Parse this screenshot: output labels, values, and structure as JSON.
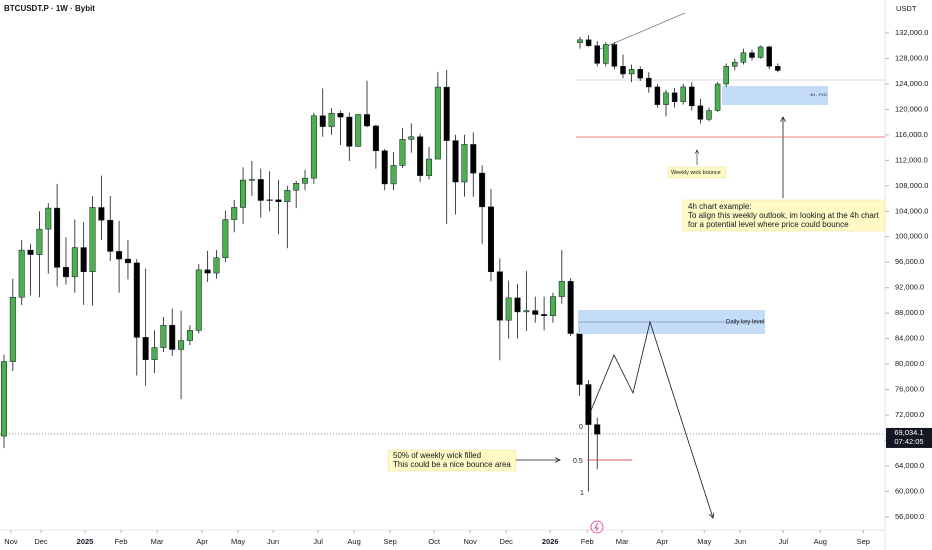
{
  "chart_data": {
    "type": "candlestick",
    "title": "BTCUSDT.P · 1W · Bybit",
    "y_axis_label": "USDT",
    "up_color": "#4caf50",
    "down_color": "#000000",
    "grid": false,
    "categories": [
      null,
      null,
      null,
      null,
      null,
      null,
      null,
      null,
      null,
      null,
      null,
      null,
      null,
      null,
      null,
      null,
      null,
      null,
      null,
      null,
      null,
      null,
      null,
      null,
      null,
      null,
      null,
      null,
      null,
      null,
      null,
      null,
      null,
      null,
      null,
      null,
      null,
      null,
      null,
      null,
      null,
      null,
      null,
      null,
      null,
      null,
      null,
      null,
      null,
      null,
      null,
      null,
      null,
      null,
      null,
      null,
      null,
      null,
      null,
      null,
      null,
      null,
      null,
      null,
      null,
      null,
      null,
      null
    ],
    "open": [
      68700,
      80400,
      90500,
      97900,
      97200,
      101200,
      104500,
      95200,
      93700,
      98300,
      94500,
      104600,
      102600,
      97700,
      96500,
      95900,
      84200,
      80700,
      82600,
      86100,
      82300,
      83700,
      85300,
      94800,
      94300,
      96700,
      102700,
      104600,
      108900,
      109000,
      105700,
      105800,
      105500,
      107300,
      108400,
      109200,
      119000,
      117300,
      119400,
      118800,
      114200,
      119200,
      117400,
      113500,
      108300,
      111200,
      115300,
      115700,
      109600,
      112200,
      123500,
      115100,
      108600,
      114500,
      110000,
      104700,
      94500,
      86900,
      90400,
      88200,
      88400,
      87800,
      87600,
      90600,
      93000,
      84800,
      76800,
      70500
    ],
    "high": [
      81500,
      93400,
      99500,
      98900,
      104000,
      105300,
      108300,
      99900,
      102700,
      102300,
      106400,
      109600,
      106400,
      102500,
      99500,
      96500,
      95000,
      85300,
      87400,
      88700,
      88400,
      86100,
      95700,
      97800,
      97900,
      104100,
      105800,
      110900,
      111900,
      110700,
      110300,
      108900,
      108000,
      108800,
      110500,
      119500,
      123300,
      120200,
      119800,
      119500,
      119300,
      124500,
      117600,
      113800,
      113300,
      117100,
      117800,
      116200,
      114100,
      125900,
      126200,
      116000,
      116000,
      116400,
      111200,
      107500,
      96600,
      93100,
      92600,
      94600,
      90600,
      90600,
      91200,
      97900,
      93500,
      86000,
      77500,
      71600
    ],
    "low": [
      66800,
      78900,
      89300,
      90800,
      90500,
      94200,
      92200,
      92500,
      91200,
      89300,
      89200,
      99500,
      96200,
      91200,
      93300,
      78200,
      76600,
      78600,
      81900,
      81300,
      74500,
      83000,
      84800,
      92900,
      93400,
      96000,
      100700,
      102000,
      106400,
      103000,
      104000,
      100400,
      98200,
      104500,
      107300,
      108300,
      115700,
      116000,
      114400,
      111900,
      114100,
      117200,
      110700,
      107300,
      107300,
      110800,
      113200,
      108600,
      109000,
      112200,
      102000,
      103500,
      106300,
      106300,
      98900,
      93000,
      80600,
      84000,
      84000,
      85200,
      86500,
      85300,
      86500,
      89500,
      84400,
      75000,
      60000,
      63500
    ],
    "close": [
      80400,
      90500,
      97900,
      97200,
      101200,
      104500,
      95200,
      93700,
      98300,
      94500,
      104600,
      102600,
      97700,
      96500,
      95900,
      84200,
      80700,
      82600,
      86100,
      82300,
      83700,
      85300,
      94800,
      94300,
      96700,
      102700,
      104600,
      108900,
      109000,
      105700,
      105800,
      105500,
      107300,
      108400,
      109200,
      119000,
      117300,
      119400,
      118800,
      114200,
      119200,
      117400,
      113500,
      108300,
      111200,
      115300,
      115700,
      109600,
      112200,
      123500,
      115100,
      108600,
      114500,
      110000,
      104700,
      94500,
      86900,
      90400,
      88200,
      88400,
      87800,
      87600,
      90600,
      93000,
      84800,
      76800,
      70500,
      69000
    ],
    "xlim": [
      -0.45,
      99.5
    ],
    "xticks": [
      {
        "value": 0.79,
        "label": "Nov"
      },
      {
        "value": 4.18,
        "label": "Dec"
      },
      {
        "value": 9.15,
        "label": "2025"
      },
      {
        "value": 13.22,
        "label": "Feb"
      },
      {
        "value": 17.29,
        "label": "Mar"
      },
      {
        "value": 22.37,
        "label": "Apr"
      },
      {
        "value": 26.44,
        "label": "May"
      },
      {
        "value": 30.39,
        "label": "Jun"
      },
      {
        "value": 35.48,
        "label": "Jul"
      },
      {
        "value": 39.54,
        "label": "Aug"
      },
      {
        "value": 43.61,
        "label": "Sep"
      },
      {
        "value": 48.58,
        "label": "Oct"
      },
      {
        "value": 52.65,
        "label": "Nov"
      },
      {
        "value": 56.72,
        "label": "Dec"
      },
      {
        "value": 61.69,
        "label": "2026"
      },
      {
        "value": 65.87,
        "label": "Feb"
      },
      {
        "value": 69.82,
        "label": "Mar"
      },
      {
        "value": 74.34,
        "label": "Apr"
      },
      {
        "value": 79.09,
        "label": "May"
      },
      {
        "value": 83.15,
        "label": "Jun"
      },
      {
        "value": 88.01,
        "label": "Jul"
      },
      {
        "value": 92.19,
        "label": "Aug"
      },
      {
        "value": 97.05,
        "label": "Sep"
      }
    ],
    "ylim": [
      53950,
      137180
    ],
    "yticks": [
      {
        "value": 132000,
        "label": "132,000.0"
      },
      {
        "value": 128000,
        "label": "128,000.0"
      },
      {
        "value": 124000,
        "label": "124,000.0"
      },
      {
        "value": 120000,
        "label": "120,000.0"
      },
      {
        "value": 116000,
        "label": "116,000.0"
      },
      {
        "value": 112000,
        "label": "112,000.0"
      },
      {
        "value": 108000,
        "label": "108,000.0"
      },
      {
        "value": 104000,
        "label": "104,000.0"
      },
      {
        "value": 100000,
        "label": "100,000.0"
      },
      {
        "value": 96000,
        "label": "96,000.0"
      },
      {
        "value": 92000,
        "label": "92,000.0"
      },
      {
        "value": 88000,
        "label": "88,000.0"
      },
      {
        "value": 84000,
        "label": "84,000.0"
      },
      {
        "value": 80000,
        "label": "80,000.0"
      },
      {
        "value": 76000,
        "label": "76,000.0"
      },
      {
        "value": 72000,
        "label": "72,000.0"
      },
      {
        "value": 68000,
        "label": "68,000.0"
      },
      {
        "value": 64000,
        "label": "64,000.0"
      },
      {
        "value": 60000,
        "label": "60,000.0"
      },
      {
        "value": 56000,
        "label": "56,000.0"
      }
    ],
    "last_price": {
      "value": 69034.1,
      "label": "69,034.1"
    },
    "countdown": "07:42:05",
    "annotations": {
      "daily_key_level": "Daily key level",
      "fib_0": "0",
      "fib_05": "0.5",
      "fib_1": "1",
      "wick_note_line1": "50% of weekly wick filled",
      "wick_note_line2": "This could be a nice bounce area",
      "h4_note_line1": "4h chart example:",
      "h4_note_line2": "To align this weekly outlook, im looking at the 4h chart",
      "h4_note_line3": "for a potential level where price could bounce",
      "weekly_wick_bounce": "Weekly wick bounce",
      "fvg": "4H - FVG"
    },
    "inset": {
      "ylim": [
        114000,
        133000
      ],
      "open": [
        130500,
        131000,
        130000,
        127000,
        130200,
        126500,
        125200,
        126000,
        124500,
        123000,
        120000,
        122000,
        120500,
        123000,
        119800,
        117500,
        119000,
        123500,
        126500,
        127200,
        128800,
        128000,
        129800,
        126500
      ],
      "high": [
        131500,
        131800,
        130800,
        130600,
        130600,
        128500,
        126800,
        126500,
        125500,
        123500,
        122500,
        122800,
        123500,
        123800,
        121000,
        119500,
        123800,
        127000,
        127800,
        129500,
        129300,
        130000,
        130000,
        127000
      ],
      "low": [
        129500,
        129800,
        126500,
        126500,
        126000,
        124500,
        123800,
        124000,
        122000,
        119500,
        118000,
        119500,
        120000,
        119000,
        116800,
        117200,
        118800,
        123000,
        125800,
        126800,
        127500,
        127800,
        126000,
        125500
      ],
      "close": [
        131000,
        130000,
        127000,
        130200,
        126500,
        125200,
        126000,
        124500,
        123000,
        120000,
        122000,
        120500,
        123000,
        119800,
        117500,
        119000,
        123500,
        126500,
        127200,
        128800,
        128000,
        129800,
        126500,
        125800
      ]
    }
  }
}
